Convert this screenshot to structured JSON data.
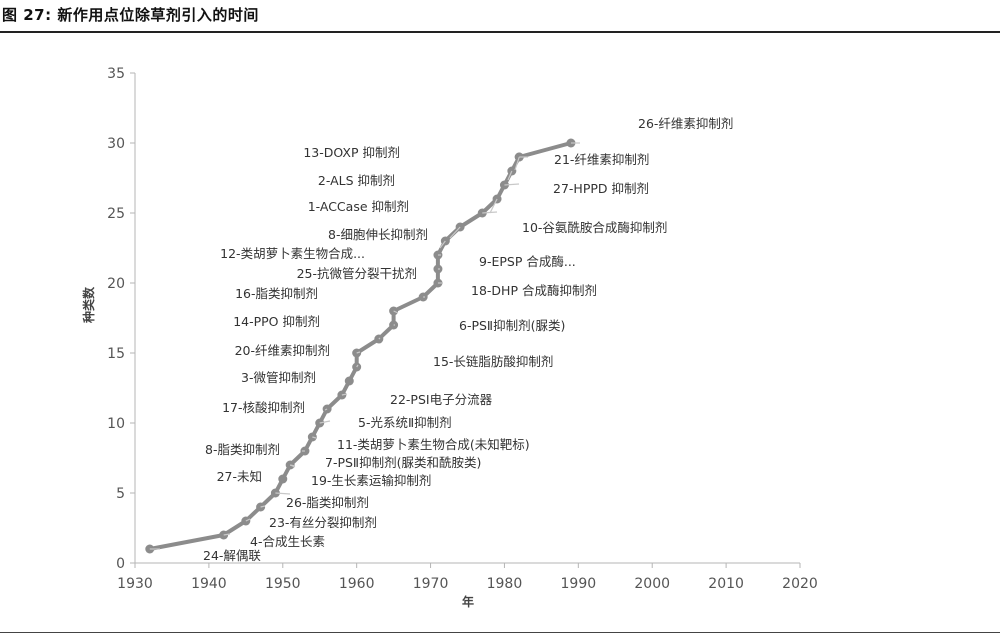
{
  "title": "图 27:  新作用点位除草剂引入的时间",
  "chart_data": {
    "type": "line",
    "xlabel": "年",
    "ylabel": "种类数",
    "xlim": [
      1930,
      2020
    ],
    "ylim": [
      0,
      35
    ],
    "x_ticks": [
      "1930",
      "1940",
      "1950",
      "1960",
      "1970",
      "1980",
      "1990",
      "2000",
      "2010",
      "2020"
    ],
    "y_ticks": [
      "0",
      "5",
      "10",
      "15",
      "20",
      "25",
      "30",
      "35"
    ],
    "series": [
      {
        "color": "#8c8c8c",
        "points": [
          {
            "x": 1932,
            "y": 1
          },
          {
            "x": 1942,
            "y": 2
          },
          {
            "x": 1945,
            "y": 3
          },
          {
            "x": 1947,
            "y": 4
          },
          {
            "x": 1949,
            "y": 5
          },
          {
            "x": 1950,
            "y": 6
          },
          {
            "x": 1951,
            "y": 7
          },
          {
            "x": 1953,
            "y": 8
          },
          {
            "x": 1954,
            "y": 9
          },
          {
            "x": 1955,
            "y": 10
          },
          {
            "x": 1956,
            "y": 11
          },
          {
            "x": 1958,
            "y": 12
          },
          {
            "x": 1959,
            "y": 13
          },
          {
            "x": 1960,
            "y": 14
          },
          {
            "x": 1960,
            "y": 15
          },
          {
            "x": 1963,
            "y": 16
          },
          {
            "x": 1965,
            "y": 17
          },
          {
            "x": 1965,
            "y": 18
          },
          {
            "x": 1969,
            "y": 19
          },
          {
            "x": 1971,
            "y": 20
          },
          {
            "x": 1971,
            "y": 21
          },
          {
            "x": 1971,
            "y": 22
          },
          {
            "x": 1972,
            "y": 23
          },
          {
            "x": 1974,
            "y": 24
          },
          {
            "x": 1977,
            "y": 25
          },
          {
            "x": 1979,
            "y": 26
          },
          {
            "x": 1980,
            "y": 27
          },
          {
            "x": 1981,
            "y": 28
          },
          {
            "x": 1982,
            "y": 29
          },
          {
            "x": 1982,
            "y": 29
          },
          {
            "x": 1989,
            "y": 30
          }
        ]
      }
    ],
    "annotations": [
      {
        "text": "26-纤维素抑制剂",
        "x": 1989,
        "y": 30
      },
      {
        "text": "13-DOXP 抑制剂",
        "x": 1982,
        "y": 29
      },
      {
        "text": "21-纤维素抑制剂",
        "x": 1982,
        "y": 29
      },
      {
        "text": "2-ALS 抑制剂",
        "x": 1981,
        "y": 28
      },
      {
        "text": "27-HPPD 抑制剂",
        "x": 1980,
        "y": 27
      },
      {
        "text": "1-ACCase 抑制剂",
        "x": 1979,
        "y": 26
      },
      {
        "text": "10-谷氨酰胺合成酶抑制剂",
        "x": 1977,
        "y": 25
      },
      {
        "text": "8-细胞伸长抑制剂",
        "x": 1974,
        "y": 24
      },
      {
        "text": "12-类胡萝卜素生物合成...",
        "x": 1972,
        "y": 23
      },
      {
        "text": "9-EPSP 合成酶...",
        "x": 1971,
        "y": 22
      },
      {
        "text": "25-抗微管分裂干扰剂",
        "x": 1971,
        "y": 21
      },
      {
        "text": "16-脂类抑制剂",
        "x": 1969,
        "y": 19
      },
      {
        "text": "18-DHP 合成酶抑制剂",
        "x": 1971,
        "y": 20
      },
      {
        "text": "14-PPO 抑制剂",
        "x": 1965,
        "y": 17
      },
      {
        "text": "6-PSⅡ抑制剂(脲类)",
        "x": 1965,
        "y": 18
      },
      {
        "text": "20-纤维素抑制剂",
        "x": 1960,
        "y": 15
      },
      {
        "text": "15-长链脂肪酸抑制剂",
        "x": 1963,
        "y": 16
      },
      {
        "text": "3-微管抑制剂",
        "x": 1960,
        "y": 14
      },
      {
        "text": "17-核酸抑制剂",
        "x": 1956,
        "y": 11
      },
      {
        "text": "22-PSⅠ电子分流器",
        "x": 1958,
        "y": 12
      },
      {
        "text": "5-光系统Ⅱ抑制剂",
        "x": 1955,
        "y": 10
      },
      {
        "text": "8-脂类抑制剂",
        "x": 1951,
        "y": 7
      },
      {
        "text": "11-类胡萝卜素生物合成(未知靶标)",
        "x": 1954,
        "y": 9
      },
      {
        "text": "7-PSⅡ抑制剂(脲类和酰胺类)",
        "x": 1953,
        "y": 8
      },
      {
        "text": "27-未知",
        "x": 1949,
        "y": 5
      },
      {
        "text": "19-生长素运输抑制剂",
        "x": 1951,
        "y": 7
      },
      {
        "text": "26-脂类抑制剂",
        "x": 1947,
        "y": 4
      },
      {
        "text": "23-有丝分裂抑制剂",
        "x": 1945,
        "y": 3
      },
      {
        "text": "4-合成生长素",
        "x": 1942,
        "y": 2
      },
      {
        "text": "24-解偶联",
        "x": 1932,
        "y": 1
      }
    ]
  }
}
